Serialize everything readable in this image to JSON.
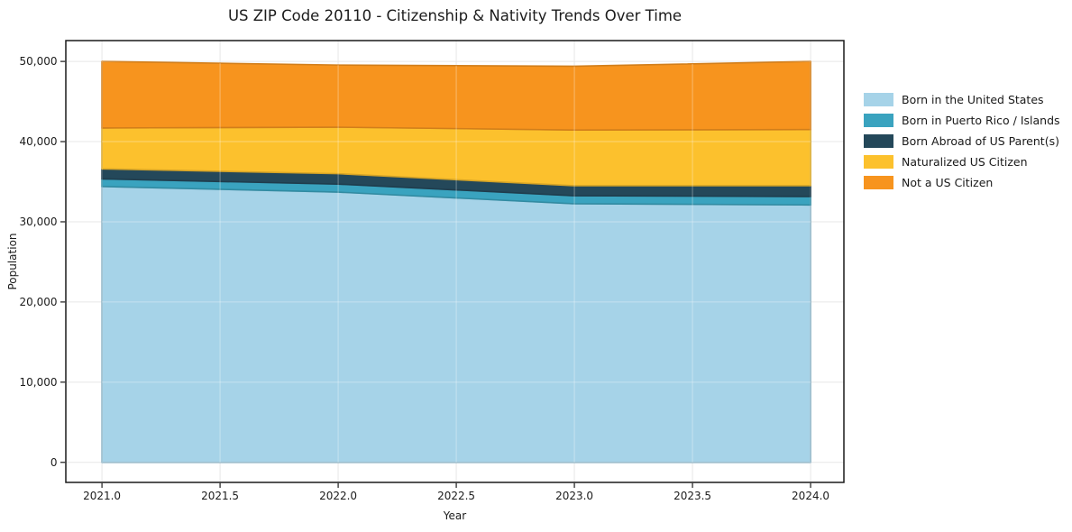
{
  "chart_data": {
    "type": "area",
    "stacked": true,
    "title": "US ZIP Code 20110 - Citizenship & Nativity Trends Over Time",
    "xlabel": "Year",
    "ylabel": "Population",
    "x": [
      2021,
      2022,
      2023,
      2024
    ],
    "series": [
      {
        "name": "Born in the United States",
        "color": "#A6D3E8",
        "values": [
          34400,
          33700,
          32250,
          32100
        ]
      },
      {
        "name": "Born in Puerto Rico / Islands",
        "color": "#3AA3BF",
        "values": [
          950,
          1000,
          1000,
          1050
        ]
      },
      {
        "name": "Born Abroad of US Parent(s)",
        "color": "#24485A",
        "values": [
          1250,
          1300,
          1250,
          1350
        ]
      },
      {
        "name": "Naturalized US Citizen",
        "color": "#FCC12D",
        "values": [
          5100,
          5800,
          6950,
          7000
        ]
      },
      {
        "name": "Not a US Citizen",
        "color": "#F7941E",
        "values": [
          8300,
          7750,
          7950,
          8500
        ]
      }
    ],
    "totals": [
      50000,
      49550,
      49400,
      50000
    ],
    "xticks": [
      2021.0,
      2021.5,
      2022.0,
      2022.5,
      2023.0,
      2023.5,
      2024.0
    ],
    "xtick_labels": [
      "2021.0",
      "2021.5",
      "2022.0",
      "2022.5",
      "2023.0",
      "2023.5",
      "2024.0"
    ],
    "yticks": [
      0,
      10000,
      20000,
      30000,
      40000,
      50000
    ],
    "ytick_labels": [
      "0",
      "10,000",
      "20,000",
      "30,000",
      "40,000",
      "50,000"
    ],
    "xlim": [
      2020.847,
      2024.141
    ],
    "ylim": [
      -2500,
      52600
    ],
    "grid": true,
    "legend_position": "right"
  }
}
